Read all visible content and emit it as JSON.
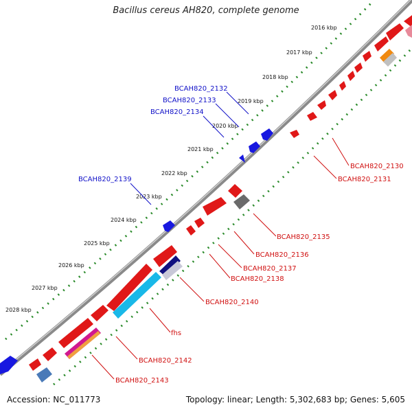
{
  "title": "Bacillus cereus AH820, complete genome",
  "footer": {
    "accession": "Accession: NC_011773",
    "summary": "Topology: linear; Length: 5,302,683 bp; Genes: 5,605"
  },
  "ticks": [
    "2016 kbp",
    "2017 kbp",
    "2018 kbp",
    "2019 kbp",
    "2020 kbp",
    "2021 kbp",
    "2022 kbp",
    "2023 kbp",
    "2024 kbp",
    "2025 kbp",
    "2026 kbp",
    "2027 kbp",
    "2028 kbp"
  ],
  "forward_labels": [
    "BCAH820_2132",
    "BCAH820_2133",
    "BCAH820_2134",
    "BCAH820_2139"
  ],
  "reverse_labels": [
    "BCAH820_2130",
    "BCAH820_2131",
    "BCAH820_2135",
    "BCAH820_2136",
    "BCAH820_2137",
    "BCAH820_2138",
    "BCAH820_2140",
    "fhs",
    "BCAH820_2142",
    "BCAH820_2143"
  ],
  "colors": {
    "backbone": "#8a8a8a",
    "tick_dots": "#2a8a2a",
    "forward_gene": "#1818e0",
    "reverse_gene": "#e01818",
    "forward_label": "#1010c8",
    "reverse_label": "#d01010",
    "cds_cyan": "#19b8e8",
    "cds_navy": "#101080",
    "cds_gray": "#6a6a6a",
    "cds_orange": "#f08a10",
    "cds_magenta": "#d01890",
    "cds_steel": "#4a7ab8"
  }
}
